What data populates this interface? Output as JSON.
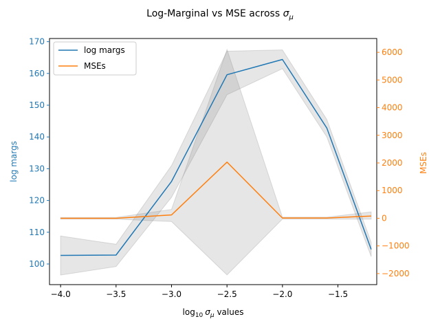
{
  "chart_data": {
    "type": "line",
    "title_prefix": "Log-Marginal vs MSE across ",
    "title_symbol": "σ",
    "title_sub": "μ",
    "xlabel_prefix": "log",
    "xlabel_base": "10",
    "xlabel_symbol": "σ",
    "xlabel_sub": "μ",
    "xlabel_suffix": " values",
    "xlim": [
      -4.1,
      -1.15
    ],
    "xticks": [
      -4.0,
      -3.5,
      -3.0,
      -2.5,
      -2.0,
      -1.5
    ],
    "xtick_labels": [
      "−4.0",
      "−3.5",
      "−3.0",
      "−2.5",
      "−2.0",
      "−1.5"
    ],
    "x": [
      -4.0,
      -3.5,
      -3.0,
      -2.5,
      -2.0,
      -1.6,
      -1.2
    ],
    "left_axis": {
      "label": "log margs",
      "color": "#1f77b4",
      "ylim": [
        93.5,
        171
      ],
      "ticks": [
        100,
        110,
        120,
        130,
        140,
        150,
        160,
        170
      ],
      "tick_labels": [
        "100",
        "110",
        "120",
        "130",
        "140",
        "150",
        "160",
        "170"
      ]
    },
    "right_axis": {
      "label": "MSEs",
      "color": "#ff7f0e",
      "ylim": [
        -2400,
        6500
      ],
      "ticks": [
        -2000,
        -1000,
        0,
        1000,
        2000,
        3000,
        4000,
        5000,
        6000
      ],
      "tick_labels": [
        "−2000",
        "−1000",
        "0",
        "1000",
        "2000",
        "3000",
        "4000",
        "5000",
        "6000"
      ]
    },
    "series": [
      {
        "name": "log margs",
        "axis": "left",
        "color": "#1f77b4",
        "values": [
          102.7,
          102.8,
          126.0,
          159.6,
          164.4,
          142.8,
          104.6
        ],
        "band_lower": [
          96.5,
          99.2,
          121.0,
          153.3,
          161.5,
          140.0,
          102.3
        ],
        "band_upper": [
          108.8,
          106.2,
          131.0,
          167.0,
          167.4,
          145.5,
          106.8
        ]
      },
      {
        "name": "MSEs",
        "axis": "right",
        "color": "#ff7f0e",
        "values": [
          0,
          0,
          120,
          2030,
          10,
          10,
          80
        ],
        "band_lower": [
          -30,
          -30,
          -120,
          -2050,
          -30,
          -30,
          -30
        ],
        "band_upper": [
          30,
          30,
          320,
          6100,
          40,
          40,
          230
        ]
      }
    ],
    "band_color": "#808080",
    "legend_position": "upper-left",
    "grid": false
  }
}
